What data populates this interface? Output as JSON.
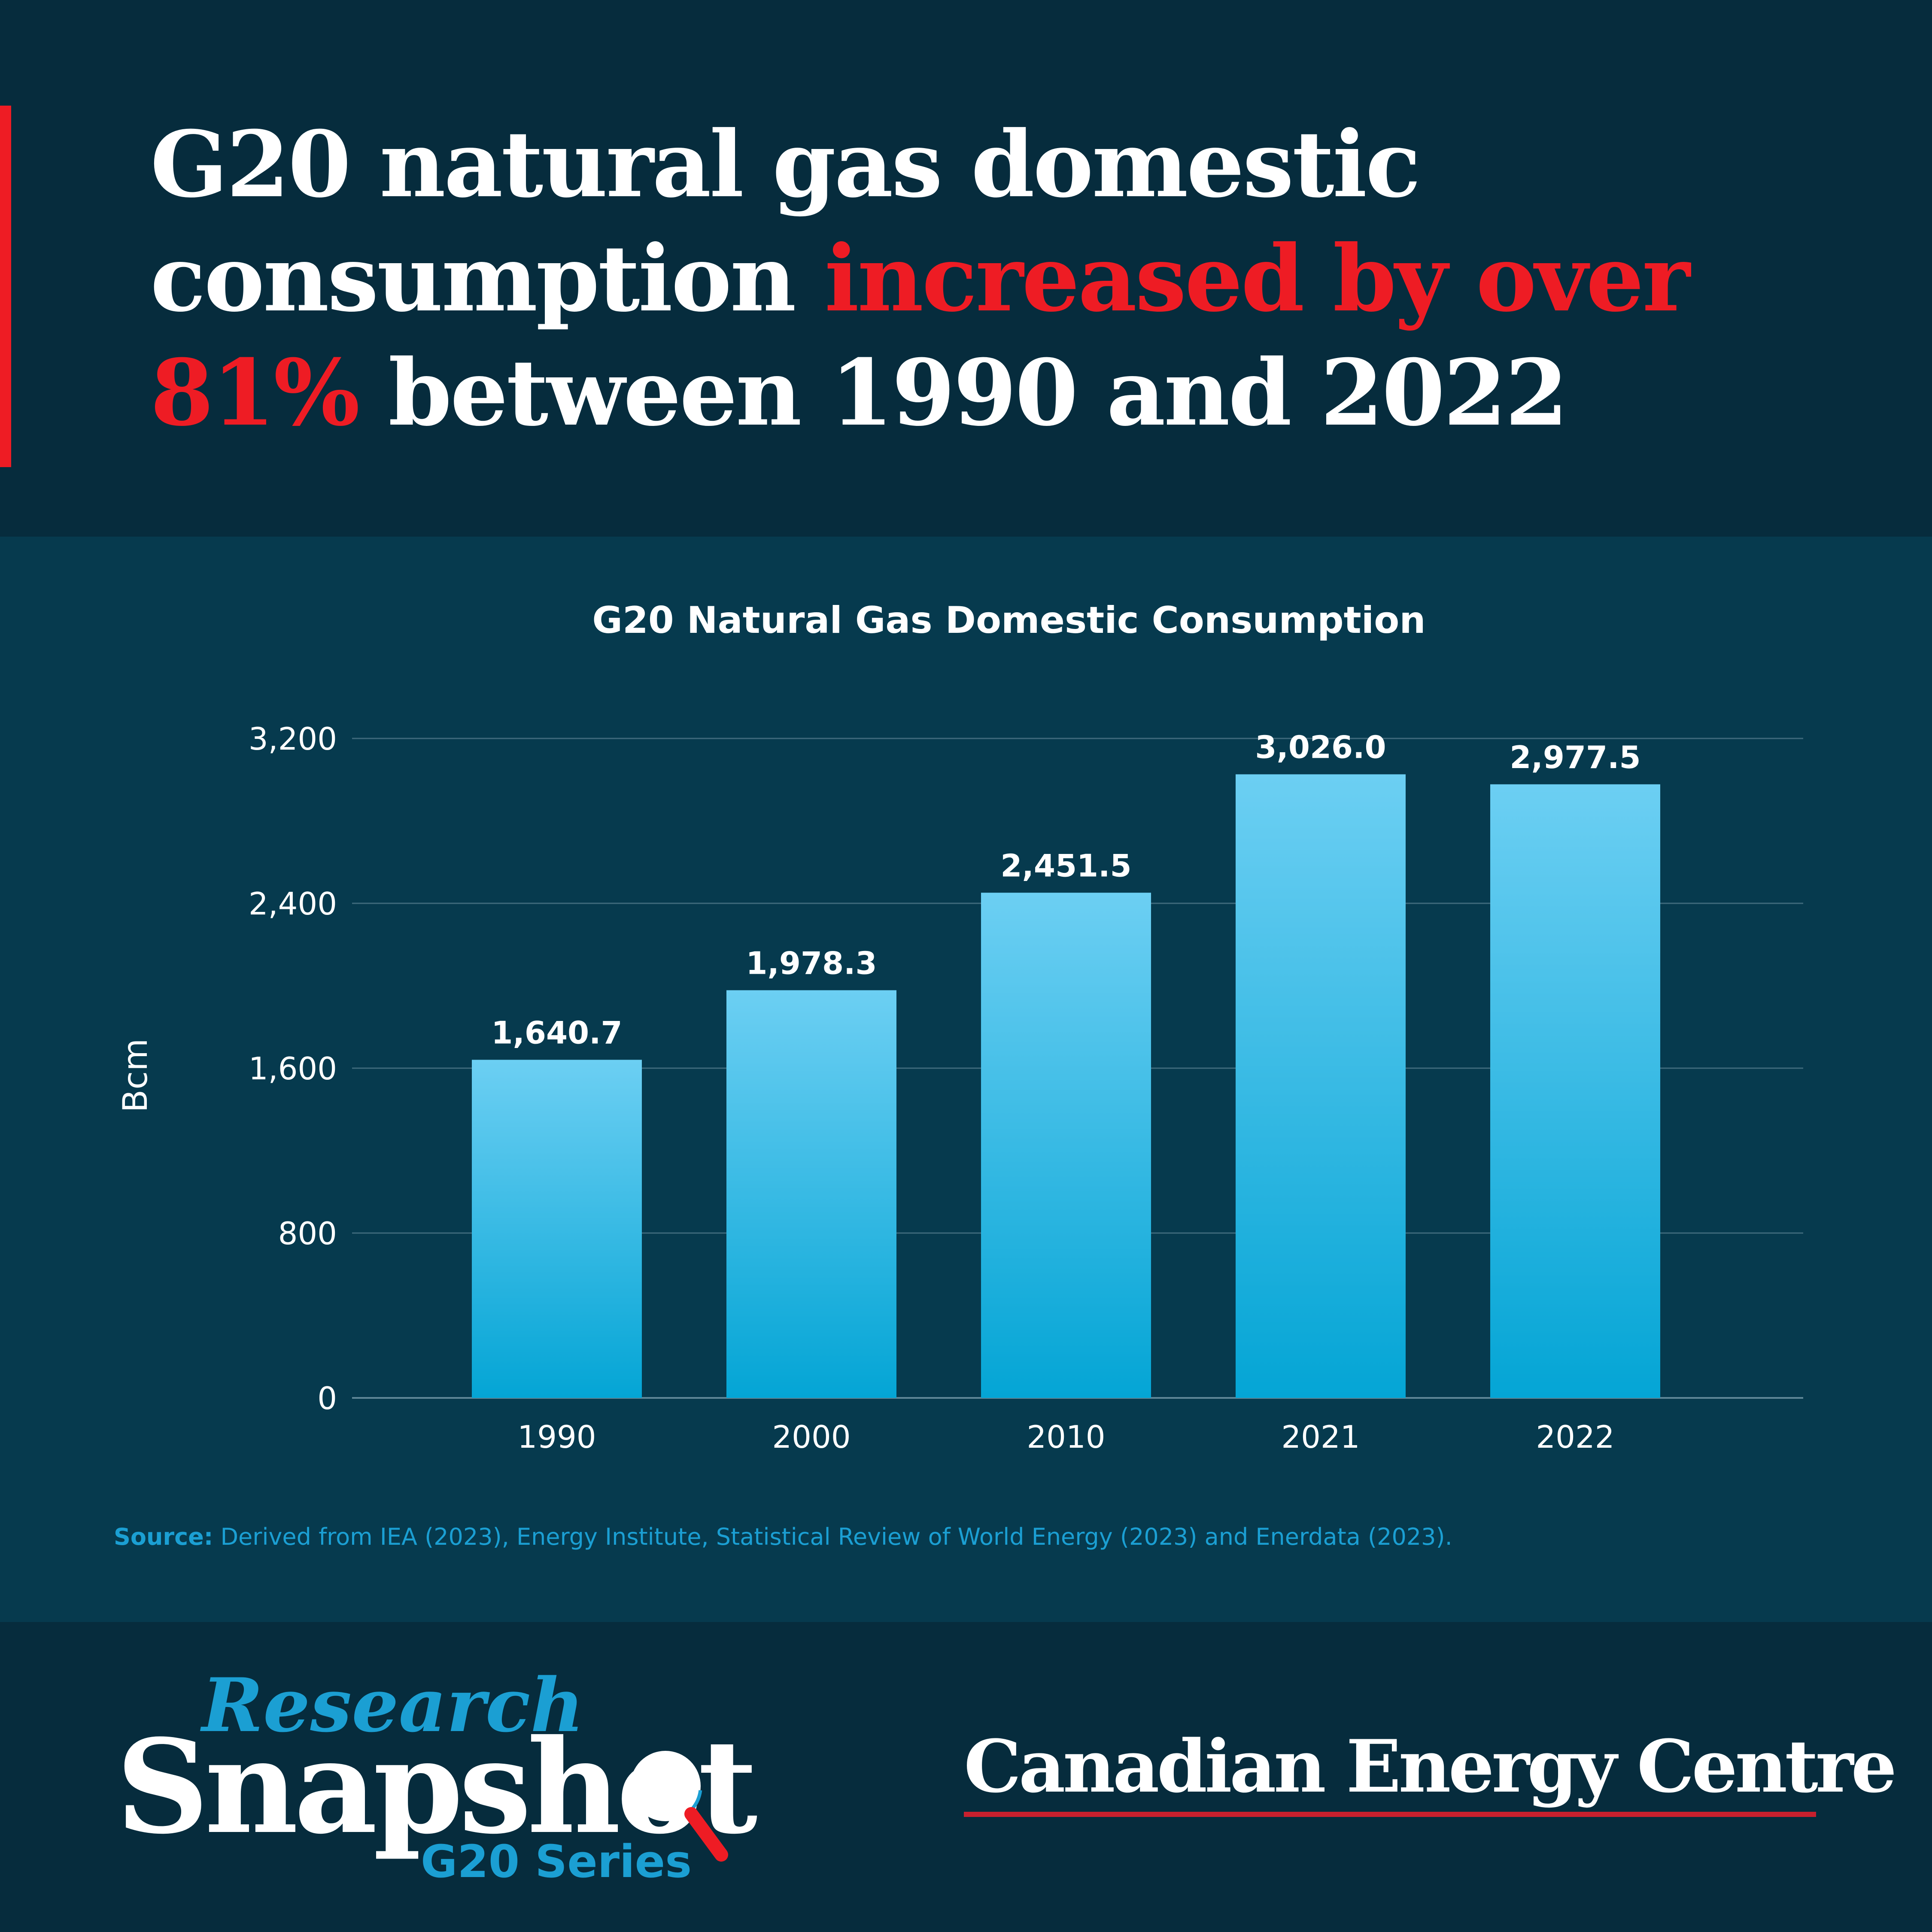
{
  "headline": {
    "part1": "G20 natural gas domestic consumption ",
    "highlight": "increased by over 81%",
    "part2": " between 1990 and 2022"
  },
  "colors": {
    "background": "#062c3d",
    "panel": "#063a4e",
    "accent_red": "#ee1c24",
    "bar_top": "#6ccff3",
    "bar_bottom": "#04a5d5",
    "source_blue": "#1b9fd3"
  },
  "chart_data": {
    "type": "bar",
    "title": "G20 Natural Gas Domestic Consumption",
    "ylabel": "Bcm",
    "xlabel": "",
    "categories": [
      "1990",
      "2000",
      "2010",
      "2021",
      "2022"
    ],
    "values": [
      1640.7,
      1978.3,
      2451.5,
      3026.0,
      2977.5
    ],
    "value_labels": [
      "1,640.7",
      "1,978.3",
      "2,451.5",
      "3,026.0",
      "2,977.5"
    ],
    "ylim": [
      0,
      3200
    ],
    "yticks": [
      0,
      800,
      1600,
      2400,
      3200
    ],
    "ytick_labels": [
      "0",
      "800",
      "1,600",
      "2,400",
      "3,200"
    ],
    "grid": true,
    "legend": "none"
  },
  "source": {
    "label": "Source:",
    "text": " Derived from IEA (2023), Energy Institute, Statistical Review of World Energy (2023) and Enerdata (2023)."
  },
  "footer": {
    "research": "Research",
    "snapshot": "Snapshot",
    "series_g20": "G20",
    "series_word": " Series",
    "magnifier_icon": "magnifier-icon",
    "brand": "Canadian Energy Centre"
  }
}
